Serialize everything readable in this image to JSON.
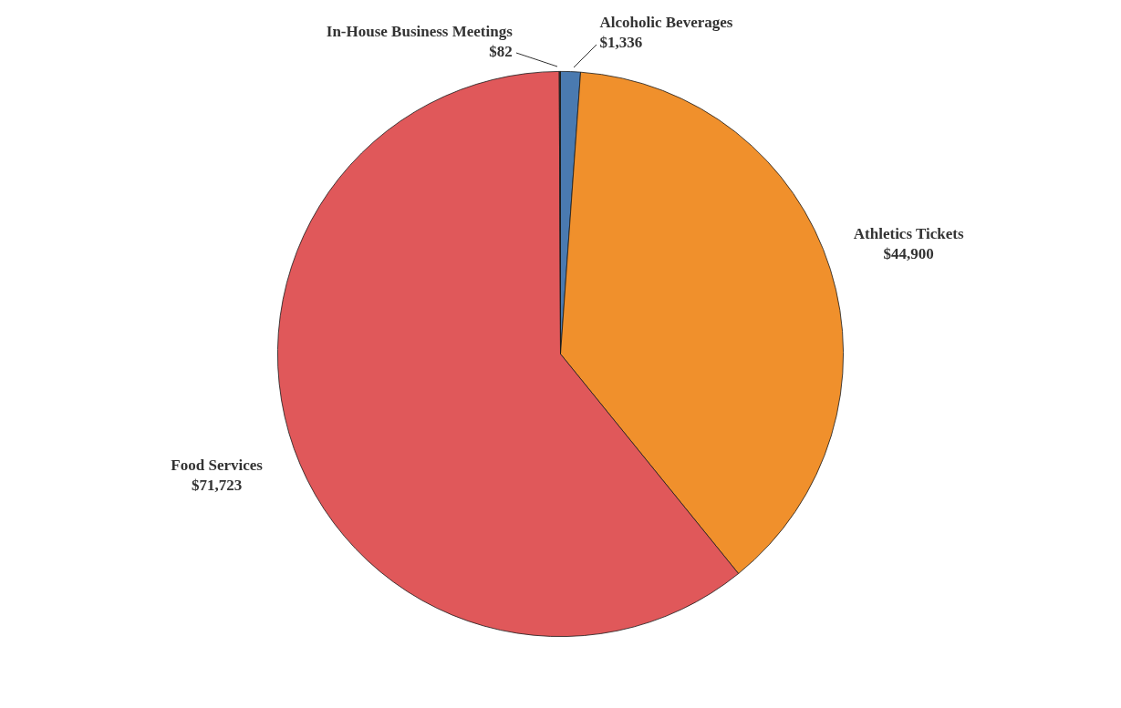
{
  "chart_data": {
    "type": "pie",
    "categories": [
      "Alcoholic Beverages",
      "Athletics Tickets",
      "Food Services",
      "In-House Business Meetings"
    ],
    "values": [
      1336,
      44900,
      71723,
      82
    ],
    "value_labels": [
      "$1,336",
      "$44,900",
      "$71,723",
      "$82"
    ],
    "colors": [
      "#4a7ab0",
      "#f0902c",
      "#e0585a",
      "#2b2b2b"
    ],
    "legend": false
  }
}
